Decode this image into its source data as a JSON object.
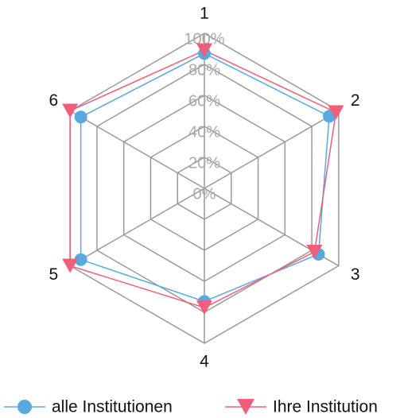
{
  "chart_data": {
    "type": "radar",
    "categories": [
      "1",
      "2",
      "3",
      "4",
      "5",
      "6"
    ],
    "series": [
      {
        "name": "alle Institutionen",
        "color": "#5aa9de",
        "marker": "circle",
        "values": [
          87,
          93,
          85,
          73,
          92,
          92
        ]
      },
      {
        "name": "Ihre Institution",
        "color": "#ef5f7a",
        "marker": "triangle-down",
        "values": [
          89,
          98,
          82,
          77,
          100,
          100
        ]
      }
    ],
    "rlim": [
      0,
      100
    ],
    "rticks": [
      {
        "value": 0,
        "label": "0%"
      },
      {
        "value": 20,
        "label": "20%"
      },
      {
        "value": 40,
        "label": "40%"
      },
      {
        "value": 60,
        "label": "60%"
      },
      {
        "value": 80,
        "label": "80%"
      },
      {
        "value": 100,
        "label": "100%"
      }
    ],
    "grid": true,
    "legend": "bottom"
  }
}
